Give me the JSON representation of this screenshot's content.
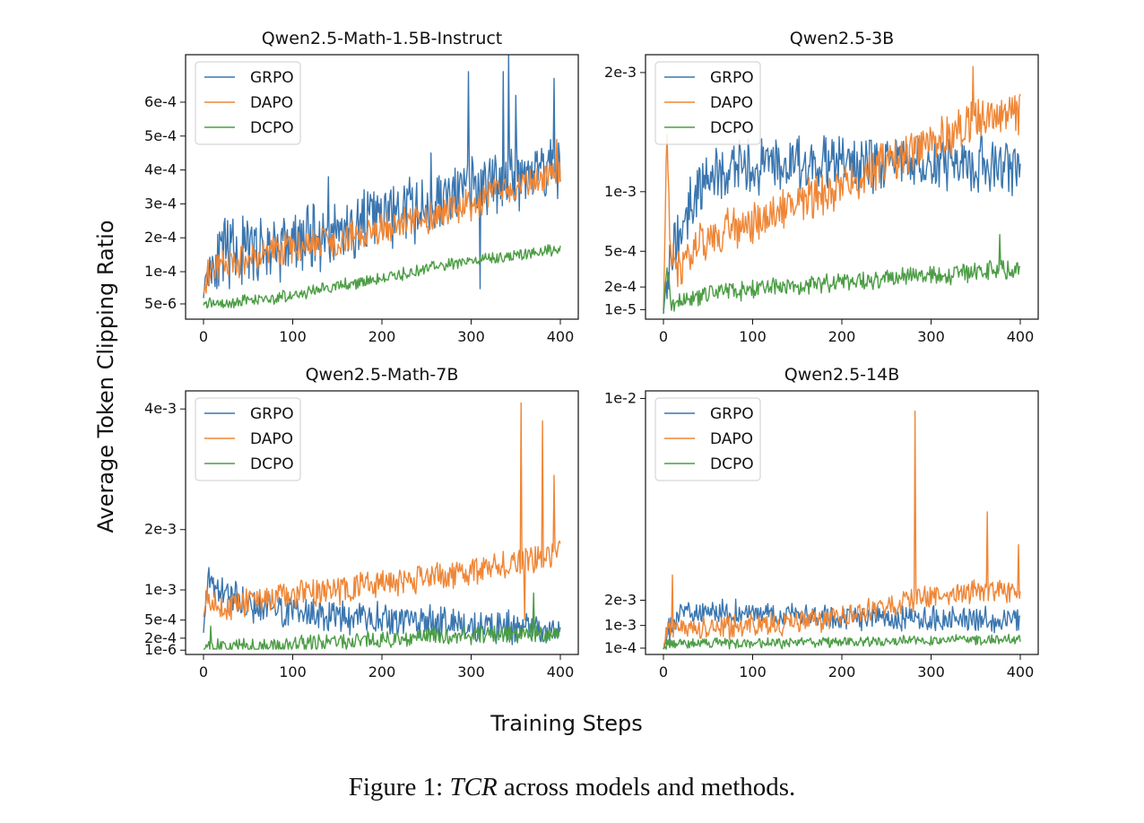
{
  "figure": {
    "ylabel": "Average Token Clipping Ratio",
    "xlabel": "Training Steps",
    "caption_prefix": "Figure 1: ",
    "caption_emph": "TCR",
    "caption_suffix": " across models and methods."
  },
  "colors": {
    "GRPO": "#3a76af",
    "DAPO": "#ef8636",
    "DCPO": "#4c9d45"
  },
  "chart_data": [
    {
      "type": "line",
      "title": "Qwen2.5-Math-1.5B-Instruct",
      "xlim": [
        0,
        400
      ],
      "xticks": [
        0,
        100,
        200,
        300,
        400
      ],
      "yticks": [
        {
          "label": "5e-6",
          "y": 5e-06
        },
        {
          "label": "1e-4",
          "y": 0.0001
        },
        {
          "label": "2e-4",
          "y": 0.0002
        },
        {
          "label": "3e-4",
          "y": 0.0003
        },
        {
          "label": "4e-4",
          "y": 0.0004
        },
        {
          "label": "5e-4",
          "y": 0.0005
        },
        {
          "label": "6e-4",
          "y": 0.0006
        }
      ],
      "ylim": [
        -4e-05,
        0.00074
      ],
      "legend": "upper-left",
      "series": [
        {
          "name": "GRPO",
          "points": [
            [
              0,
              4e-05
            ],
            [
              5,
              0.00012
            ],
            [
              25,
              0.00015
            ],
            [
              50,
              0.00016
            ],
            [
              100,
              0.00018
            ],
            [
              150,
              0.00022
            ],
            [
              200,
              0.00026
            ],
            [
              250,
              0.00029
            ],
            [
              300,
              0.00034
            ],
            [
              340,
              0.00038
            ],
            [
              400,
              0.00042
            ]
          ],
          "noise": 0.00017,
          "spikes": [
            [
              140,
              0.00038
            ],
            [
              255,
              0.00045
            ],
            [
              297,
              0.00069
            ],
            [
              310,
              5e-05
            ],
            [
              336,
              0.00069
            ],
            [
              342,
              0.00074
            ],
            [
              350,
              0.00062
            ],
            [
              393,
              0.00067
            ]
          ],
          "seed": 11
        },
        {
          "name": "DAPO",
          "points": [
            [
              0,
              4e-05
            ],
            [
              5,
              0.0001
            ],
            [
              50,
              0.00014
            ],
            [
              100,
              0.00017
            ],
            [
              150,
              0.00019
            ],
            [
              200,
              0.00022
            ],
            [
              250,
              0.00026
            ],
            [
              300,
              0.0003
            ],
            [
              350,
              0.00035
            ],
            [
              400,
              0.0004
            ]
          ],
          "noise": 8e-05,
          "spikes": [
            [
              396,
              0.00049
            ]
          ],
          "seed": 23
        },
        {
          "name": "DCPO",
          "points": [
            [
              0,
              5e-06
            ],
            [
              50,
              1.2e-05
            ],
            [
              100,
              3e-05
            ],
            [
              150,
              6e-05
            ],
            [
              200,
              8e-05
            ],
            [
              250,
              0.00011
            ],
            [
              300,
              0.00013
            ],
            [
              350,
              0.00015
            ],
            [
              400,
              0.00017
            ]
          ],
          "noise": 3e-05,
          "spikes": [],
          "seed": 37
        }
      ]
    },
    {
      "type": "line",
      "title": "Qwen2.5-3B",
      "xlim": [
        0,
        400
      ],
      "xticks": [
        0,
        100,
        200,
        300,
        400
      ],
      "yticks": [
        {
          "label": "1e-5",
          "y": 1e-05
        },
        {
          "label": "2e-4",
          "y": 0.0002
        },
        {
          "label": "5e-4",
          "y": 0.0005
        },
        {
          "label": "1e-3",
          "y": 0.001
        },
        {
          "label": "2e-3",
          "y": 0.002
        }
      ],
      "ylim": [
        -7e-05,
        0.00215
      ],
      "legend": "upper-left",
      "series": [
        {
          "name": "GRPO",
          "points": [
            [
              0,
              3e-05
            ],
            [
              5,
              0.0004
            ],
            [
              15,
              0.0006
            ],
            [
              30,
              0.0009
            ],
            [
              50,
              0.00115
            ],
            [
              100,
              0.0012
            ],
            [
              200,
              0.00125
            ],
            [
              300,
              0.00125
            ],
            [
              400,
              0.0012
            ]
          ],
          "noise": 0.0004,
          "spikes": [],
          "seed": 53
        },
        {
          "name": "DAPO",
          "points": [
            [
              0,
              3e-05
            ],
            [
              4,
              0.0015
            ],
            [
              8,
              0.0004
            ],
            [
              20,
              0.0004
            ],
            [
              50,
              0.0006
            ],
            [
              100,
              0.00075
            ],
            [
              150,
              0.0009
            ],
            [
              200,
              0.00105
            ],
            [
              250,
              0.00125
            ],
            [
              300,
              0.0014
            ],
            [
              350,
              0.0016
            ],
            [
              400,
              0.00165
            ]
          ],
          "noise": 0.0003,
          "spikes": [
            [
              347,
              0.00205
            ]
          ],
          "seed": 61
        },
        {
          "name": "DCPO",
          "points": [
            [
              0,
              1e-05
            ],
            [
              4,
              0.0004
            ],
            [
              8,
              5e-05
            ],
            [
              50,
              0.00014
            ],
            [
              100,
              0.00018
            ],
            [
              200,
              0.00024
            ],
            [
              300,
              0.00029
            ],
            [
              400,
              0.00035
            ]
          ],
          "noise": 0.00014,
          "spikes": [
            [
              377,
              0.00064
            ]
          ],
          "seed": 71
        }
      ]
    },
    {
      "type": "line",
      "title": "Qwen2.5-Math-7B",
      "xlim": [
        0,
        400
      ],
      "xticks": [
        0,
        100,
        200,
        300,
        400
      ],
      "yticks": [
        {
          "label": "1e-6",
          "y": 1e-06
        },
        {
          "label": "2e-4",
          "y": 0.0002
        },
        {
          "label": "5e-4",
          "y": 0.0005
        },
        {
          "label": "1e-3",
          "y": 0.001
        },
        {
          "label": "2e-3",
          "y": 0.002
        },
        {
          "label": "4e-3",
          "y": 0.004
        }
      ],
      "ylim": [
        -7e-05,
        0.0043
      ],
      "legend": "upper-left",
      "series": [
        {
          "name": "GRPO",
          "points": [
            [
              0,
              0.00035
            ],
            [
              5,
              0.0011
            ],
            [
              15,
              0.001
            ],
            [
              50,
              0.00075
            ],
            [
              100,
              0.00065
            ],
            [
              150,
              0.00055
            ],
            [
              200,
              0.0005
            ],
            [
              250,
              0.00048
            ],
            [
              300,
              0.0004
            ],
            [
              350,
              0.00035
            ],
            [
              400,
              0.0003
            ]
          ],
          "noise": 0.00045,
          "spikes": [],
          "seed": 83
        },
        {
          "name": "DAPO",
          "points": [
            [
              0,
              0.0006
            ],
            [
              5,
              0.0009
            ],
            [
              20,
              0.0007
            ],
            [
              50,
              0.0008
            ],
            [
              100,
              0.0009
            ],
            [
              150,
              0.001
            ],
            [
              200,
              0.0011
            ],
            [
              250,
              0.0012
            ],
            [
              300,
              0.0013
            ],
            [
              350,
              0.0015
            ],
            [
              400,
              0.0016
            ]
          ],
          "noise": 0.0004,
          "spikes": [
            [
              356,
              0.0041
            ],
            [
              360,
              0.0005
            ],
            [
              380,
              0.0038
            ],
            [
              393,
              0.0029
            ]
          ],
          "seed": 97
        },
        {
          "name": "DCPO",
          "points": [
            [
              0,
              2e-05
            ],
            [
              50,
              6e-05
            ],
            [
              100,
              0.0001
            ],
            [
              200,
              0.00018
            ],
            [
              300,
              0.00025
            ],
            [
              400,
              0.0003
            ]
          ],
          "noise": 0.00025,
          "spikes": [
            [
              8,
              0.0004
            ],
            [
              370,
              0.00095
            ]
          ],
          "seed": 101
        }
      ]
    },
    {
      "type": "line",
      "title": "Qwen2.5-14B",
      "xlim": [
        0,
        400
      ],
      "xticks": [
        0,
        100,
        200,
        300,
        400
      ],
      "yticks": [
        {
          "label": "1e-4",
          "y": 0.0001
        },
        {
          "label": "1e-3",
          "y": 0.001
        },
        {
          "label": "2e-3",
          "y": 0.002
        },
        {
          "label": "1e-2",
          "y": 0.01
        }
      ],
      "ylim": [
        -0.00015,
        0.0103
      ],
      "legend": "upper-left",
      "series": [
        {
          "name": "GRPO",
          "points": [
            [
              0,
              5e-05
            ],
            [
              5,
              0.0008
            ],
            [
              20,
              0.0015
            ],
            [
              100,
              0.0015
            ],
            [
              200,
              0.0013
            ],
            [
              300,
              0.00125
            ],
            [
              400,
              0.0012
            ]
          ],
          "noise": 0.0008,
          "spikes": [],
          "seed": 113
        },
        {
          "name": "DAPO",
          "points": [
            [
              0,
              5e-05
            ],
            [
              5,
              0.0009
            ],
            [
              50,
              0.0009
            ],
            [
              100,
              0.001
            ],
            [
              200,
              0.0013
            ],
            [
              250,
              0.0018
            ],
            [
              300,
              0.0021
            ],
            [
              350,
              0.0023
            ],
            [
              400,
              0.0024
            ]
          ],
          "noise": 0.0008,
          "spikes": [
            [
              10,
              0.003
            ],
            [
              282,
              0.0095
            ],
            [
              363,
              0.0055
            ],
            [
              398,
              0.0042
            ]
          ],
          "seed": 127
        },
        {
          "name": "DCPO",
          "points": [
            [
              0,
              2e-05
            ],
            [
              5,
              0.0003
            ],
            [
              100,
              0.0003
            ],
            [
              200,
              0.00035
            ],
            [
              300,
              0.0004
            ],
            [
              400,
              0.00045
            ]
          ],
          "noise": 0.00035,
          "spikes": [],
          "seed": 131
        }
      ]
    }
  ]
}
